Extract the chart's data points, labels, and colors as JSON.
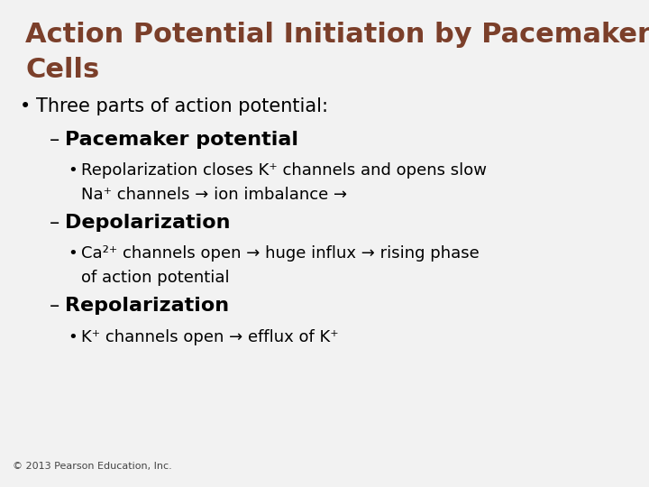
{
  "title_line1": "Action Potential Initiation by Pacemaker",
  "title_line2": "Cells",
  "title_color": "#7B3F2A",
  "background_color": "#F2F2F2",
  "footer": "© 2013 Pearson Education, Inc.",
  "bullet1_color": "#000000",
  "title_fontsize": 22,
  "body_fontsize": 15,
  "sub_header_fontsize": 16,
  "sub_bullet_fontsize": 13,
  "footer_fontsize": 8
}
